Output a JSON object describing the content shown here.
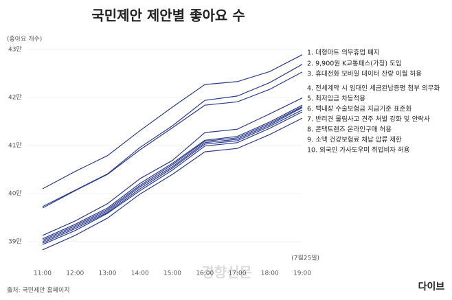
{
  "chart_data": {
    "type": "line",
    "title": "국민제안 제안별 좋아요 수",
    "y_label": "(좋아요 개수)",
    "note": "(7월25일)",
    "source": "출처: 국민제안 홈페이지",
    "logo": "다이브",
    "watermark": "경향신문",
    "categories": [
      "11:00",
      "12:00",
      "13:00",
      "14:00",
      "15:00",
      "16:00",
      "17:00",
      "18:00",
      "19:00"
    ],
    "ylim": [
      384000,
      433000
    ],
    "yticks": [
      {
        "value": 390000,
        "label": "39만"
      },
      {
        "value": 400000,
        "label": "40만"
      },
      {
        "value": 410000,
        "label": "41만"
      },
      {
        "value": 420000,
        "label": "42만"
      },
      {
        "value": 430000,
        "label": "43만"
      }
    ],
    "grid": true,
    "series": [
      {
        "name": "1. 대형마트 의무휴업 폐지",
        "color": "#2b3a8c",
        "values": [
          401000,
          404600,
          407900,
          413100,
          418000,
          422700,
          423300,
          425400,
          428900
        ]
      },
      {
        "name": "2. 9,900원 K교통패스(가칭) 도입",
        "color": "#2b3a8c",
        "values": [
          397300,
          400700,
          404100,
          409600,
          414100,
          419400,
          420300,
          423100,
          426900
        ]
      },
      {
        "name": "3. 휴대전화 모바일 데이터 잔량 이월 허용",
        "color": "#2b3a8c",
        "values": [
          397000,
          400600,
          404000,
          409100,
          413700,
          418400,
          419100,
          421700,
          425300
        ]
      },
      {
        "name": "4. 전세계약 시 임대인 세금완납증명 첨부 의무화",
        "color": "#2b3a8c",
        "values": [
          391300,
          394300,
          397900,
          403100,
          406900,
          412700,
          413400,
          416600,
          419900
        ]
      },
      {
        "name": "5. 최저임금 차등적용",
        "color": "#2b3a8c",
        "values": [
          390600,
          393600,
          397000,
          402100,
          406300,
          411100,
          411900,
          414900,
          418400
        ]
      },
      {
        "name": "6. 백내장 수술보험금 지급기준 표준화",
        "color": "#2b3a8c",
        "values": [
          390300,
          393300,
          396700,
          401700,
          406000,
          410900,
          411600,
          414600,
          418100
        ]
      },
      {
        "name": "7. 반려견 물림사고 견주 처벌 강화 및 안락사",
        "color": "#2b3a8c",
        "values": [
          390000,
          393000,
          396400,
          401400,
          405600,
          410600,
          411300,
          414300,
          417900
        ]
      },
      {
        "name": "8. 콘택트렌즈 온라인구매 허용",
        "color": "#2b3a8c",
        "values": [
          389700,
          392700,
          396100,
          401000,
          405300,
          410300,
          411000,
          414000,
          417400
        ]
      },
      {
        "name": "9. 소액 건강보험료 체납 압류 제한",
        "color": "#2b3a8c",
        "values": [
          389400,
          392300,
          395900,
          400600,
          404900,
          409900,
          410600,
          413600,
          417000
        ]
      },
      {
        "name": "10. 외국인 가사도우미 취업비자 허용",
        "color": "#2b3a8c",
        "values": [
          388300,
          391300,
          394900,
          399900,
          404000,
          408700,
          409400,
          412300,
          415700
        ]
      }
    ]
  }
}
